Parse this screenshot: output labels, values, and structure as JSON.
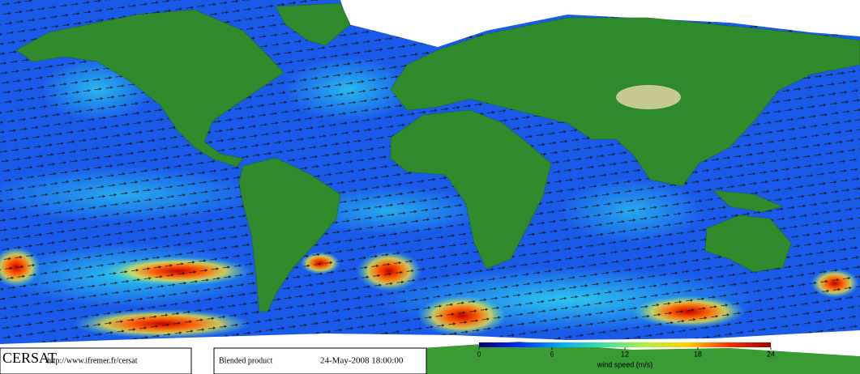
{
  "footer": {
    "logo": "CERSAT",
    "url": "http://www.ifremer.fr/cersat",
    "product": "Blended product",
    "timestamp": "24-May-2008 18:00:00"
  },
  "colorbar": {
    "label": "wind speed (m/s)",
    "lim": [
      0,
      24
    ],
    "ticks": [
      0,
      6,
      12,
      18,
      24
    ],
    "colors": [
      "#00006e",
      "#0030ff",
      "#00b0ff",
      "#40e0a0",
      "#b0f040",
      "#ffd000",
      "#ff3000",
      "#a00000"
    ]
  }
}
